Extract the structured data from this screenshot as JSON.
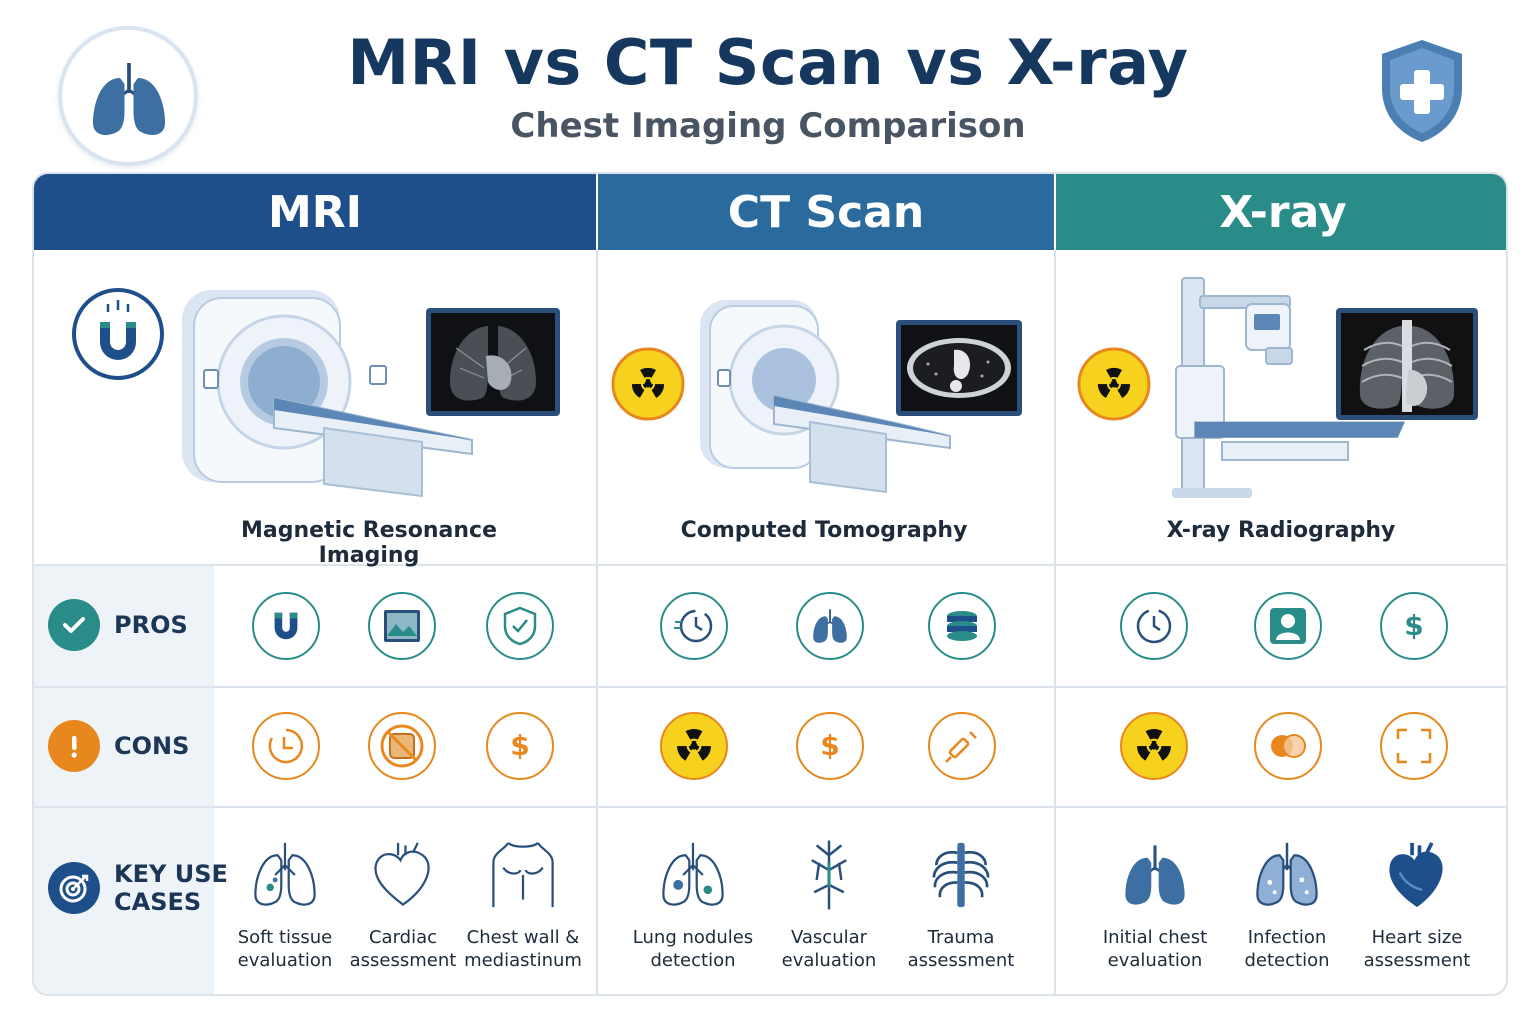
{
  "title": "MRI vs CT Scan vs X-ray",
  "subtitle": "Chest Imaging Comparison",
  "row_labels": {
    "pros": "PROS",
    "cons": "CONS",
    "use_cases_line1": "KEY USE",
    "use_cases_line2": "CASES"
  },
  "columns": [
    {
      "header": "MRI",
      "full_name": "Magnetic Resonance Imaging",
      "pros_icons": [
        "magnet-icon",
        "image-icon",
        "shield-check-icon"
      ],
      "cons_icons": [
        "clock-icon",
        "no-metal-icon",
        "dollar-icon"
      ],
      "use_cases": [
        {
          "line1": "Soft tissue",
          "line2": "evaluation",
          "icon": "lungs-icon"
        },
        {
          "line1": "Cardiac",
          "line2": "assessment",
          "icon": "heart-icon"
        },
        {
          "line1": "Chest wall &",
          "line2": "mediastinum",
          "icon": "torso-icon"
        }
      ]
    },
    {
      "header": "CT Scan",
      "full_name": "Computed Tomography",
      "pros_icons": [
        "fast-clock-icon",
        "lungs-icon",
        "layers-icon"
      ],
      "cons_icons": [
        "radiation-icon",
        "dollar-icon",
        "syringe-icon"
      ],
      "use_cases": [
        {
          "line1": "Lung nodules",
          "line2": "detection",
          "icon": "lungs-nodule-icon"
        },
        {
          "line1": "Vascular",
          "line2": "evaluation",
          "icon": "vessels-icon"
        },
        {
          "line1": "Trauma",
          "line2": "assessment",
          "icon": "ribcage-icon"
        }
      ]
    },
    {
      "header": "X-ray",
      "full_name": "X-ray Radiography",
      "pros_icons": [
        "fast-clock-icon",
        "person-icon",
        "dollar-icon"
      ],
      "cons_icons": [
        "radiation-icon",
        "overlap-icon",
        "frame-icon"
      ],
      "use_cases": [
        {
          "line1": "Initial chest",
          "line2": "evaluation",
          "icon": "lungs-icon"
        },
        {
          "line1": "Infection",
          "line2": "detection",
          "icon": "lungs-infection-icon"
        },
        {
          "line1": "Heart size",
          "line2": "assessment",
          "icon": "heart-icon"
        }
      ]
    }
  ],
  "colors": {
    "navy": "#1f4f8a",
    "blue": "#2a6a9d",
    "teal": "#2a8c88",
    "orange": "#e8871e",
    "yellow": "#f6d21e"
  }
}
